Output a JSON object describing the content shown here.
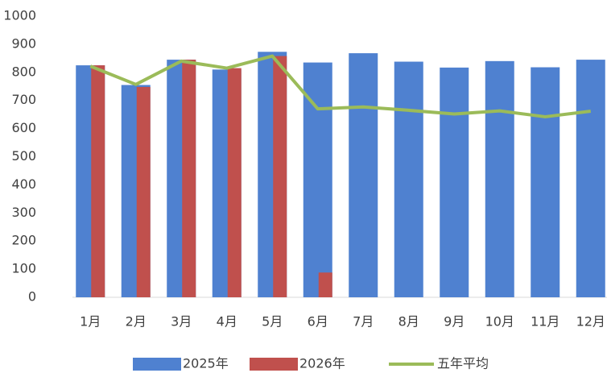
{
  "chart_data": {
    "type": "bar-line",
    "categories": [
      "1月",
      "2月",
      "3月",
      "4月",
      "5月",
      "6月",
      "7月",
      "8月",
      "9月",
      "10月",
      "11月",
      "12月"
    ],
    "series": [
      {
        "name": "2025年",
        "type": "bar",
        "color": "#4f81d0",
        "values": [
          825,
          755,
          845,
          810,
          873,
          835,
          868,
          838,
          817,
          840,
          818,
          845
        ]
      },
      {
        "name": "2026年",
        "type": "bar",
        "color": "#c0504d",
        "values": [
          825,
          748,
          845,
          815,
          858,
          88,
          null,
          null,
          null,
          null,
          null,
          null
        ]
      },
      {
        "name": "五年平均",
        "type": "line",
        "color": "#9bbb59",
        "values": [
          822,
          757,
          840,
          815,
          858,
          670,
          677,
          665,
          652,
          663,
          642,
          662
        ]
      }
    ],
    "ylim": [
      0,
      1000
    ],
    "yticks": [
      0,
      100,
      200,
      300,
      400,
      500,
      600,
      700,
      800,
      900,
      1000
    ],
    "grid": false,
    "legend": "bottom"
  }
}
